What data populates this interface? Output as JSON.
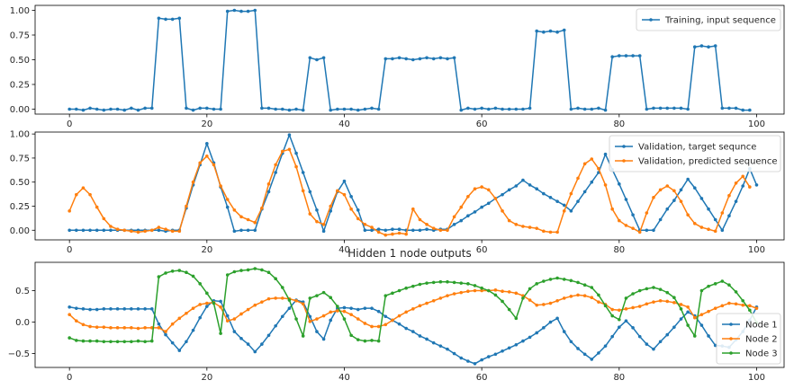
{
  "chart_data": [
    {
      "type": "line",
      "title": "",
      "xlim": [
        -5,
        104
      ],
      "ylim": [
        -0.05,
        1.05
      ],
      "xticks": [
        0,
        20,
        40,
        60,
        80,
        100
      ],
      "yticks": [
        0.0,
        0.25,
        0.5,
        0.75,
        1.0
      ],
      "xtick_labels": [
        "0",
        "20",
        "40",
        "60",
        "80",
        "100"
      ],
      "ytick_labels": [
        "0.00",
        "0.25",
        "0.50",
        "0.75",
        "1.00"
      ],
      "legend_position": "top-right",
      "series": [
        {
          "name": "Training, input sequence",
          "color": "#1f77b4",
          "values": [
            0,
            0,
            -0.01,
            0.01,
            0,
            -0.01,
            0,
            0,
            -0.01,
            0.01,
            -0.01,
            0.01,
            0.01,
            0.92,
            0.91,
            0.91,
            0.92,
            0.01,
            -0.01,
            0.01,
            0.01,
            0,
            0,
            0.99,
            1.0,
            0.99,
            0.99,
            1.0,
            0.01,
            0.01,
            0,
            0,
            -0.01,
            0,
            -0.01,
            0.52,
            0.5,
            0.52,
            -0.01,
            0,
            0,
            0,
            -0.01,
            0,
            0.01,
            0,
            0.51,
            0.51,
            0.52,
            0.51,
            0.5,
            0.51,
            0.52,
            0.51,
            0.52,
            0.51,
            0.52,
            -0.01,
            0.01,
            0,
            0.01,
            0,
            0.01,
            0,
            0,
            0,
            0,
            0.01,
            0.79,
            0.78,
            0.79,
            0.78,
            0.8,
            0,
            0.01,
            0,
            0,
            0.01,
            -0.01,
            0.53,
            0.54,
            0.54,
            0.54,
            0.54,
            0,
            0.01,
            0.01,
            0.01,
            0.01,
            0.01,
            0,
            0.63,
            0.64,
            0.63,
            0.64,
            0.01,
            0.01,
            0.01,
            -0.01,
            -0.01
          ]
        }
      ]
    },
    {
      "type": "line",
      "title": "",
      "xlim": [
        -5,
        104
      ],
      "ylim": [
        -0.1,
        1.02
      ],
      "xticks": [
        0,
        20,
        40,
        60,
        80,
        100
      ],
      "yticks": [
        0.0,
        0.25,
        0.5,
        0.75,
        1.0
      ],
      "xtick_labels": [
        "0",
        "20",
        "40",
        "60",
        "80",
        "100"
      ],
      "ytick_labels": [
        "0.00",
        "0.25",
        "0.50",
        "0.75",
        "1.00"
      ],
      "legend_position": "top-right",
      "series": [
        {
          "name": "Validation, target sequnce",
          "color": "#1f77b4",
          "values": [
            0,
            0,
            0,
            0,
            0,
            0,
            0,
            0,
            0,
            0,
            0,
            0,
            0,
            0,
            -0.01,
            0,
            0,
            0.23,
            0.47,
            0.68,
            0.9,
            0.7,
            0.45,
            0.24,
            -0.01,
            0,
            0,
            0,
            0.22,
            0.4,
            0.6,
            0.8,
            0.99,
            0.8,
            0.6,
            0.4,
            0.21,
            -0.01,
            0.2,
            0.4,
            0.51,
            0.35,
            0.21,
            0,
            0,
            0.01,
            0,
            0.01,
            0.01,
            0,
            0,
            0,
            0.01,
            0,
            0.01,
            0.01,
            0.06,
            0.1,
            0.15,
            0.19,
            0.24,
            0.28,
            0.33,
            0.37,
            0.42,
            0.46,
            0.52,
            0.47,
            0.43,
            0.38,
            0.34,
            0.3,
            0.26,
            0.2,
            0.3,
            0.4,
            0.5,
            0.6,
            0.79,
            0.63,
            0.48,
            0.32,
            0.16,
            0,
            0,
            0,
            0.11,
            0.22,
            0.31,
            0.42,
            0.53,
            0.44,
            0.33,
            0.22,
            0.11,
            0,
            0.15,
            0.3,
            0.46,
            0.64,
            0.47
          ]
        },
        {
          "name": "Validation, predicted sequence",
          "color": "#ff7f0e",
          "values": [
            0.2,
            0.37,
            0.44,
            0.37,
            0.24,
            0.12,
            0.04,
            0.01,
            0,
            -0.01,
            -0.02,
            -0.01,
            0,
            0.03,
            0.01,
            -0.01,
            -0.01,
            0.25,
            0.5,
            0.7,
            0.77,
            0.68,
            0.46,
            0.32,
            0.21,
            0.14,
            0.11,
            0.08,
            0.23,
            0.48,
            0.68,
            0.82,
            0.84,
            0.66,
            0.41,
            0.17,
            0.09,
            0.06,
            0.25,
            0.41,
            0.37,
            0.22,
            0.12,
            0.06,
            0.03,
            -0.02,
            -0.05,
            -0.04,
            -0.03,
            -0.04,
            0.22,
            0.11,
            0.06,
            0.02,
            0,
            0,
            0.14,
            0.24,
            0.35,
            0.43,
            0.45,
            0.42,
            0.33,
            0.2,
            0.1,
            0.06,
            0.04,
            0.03,
            0.02,
            -0.01,
            -0.02,
            -0.02,
            0.2,
            0.38,
            0.54,
            0.69,
            0.74,
            0.64,
            0.47,
            0.22,
            0.1,
            0.05,
            0.02,
            -0.02,
            0.18,
            0.34,
            0.42,
            0.46,
            0.41,
            0.3,
            0.16,
            0.07,
            0.03,
            0.01,
            -0.01,
            0.18,
            0.36,
            0.49,
            0.56,
            0.45
          ]
        }
      ]
    },
    {
      "type": "line",
      "title": "Hidden 1 node outputs",
      "xlim": [
        -5,
        104
      ],
      "ylim": [
        -0.72,
        0.95
      ],
      "xticks": [
        0,
        20,
        40,
        60,
        80,
        100
      ],
      "yticks": [
        -0.5,
        0.0,
        0.5
      ],
      "xtick_labels": [
        "0",
        "20",
        "40",
        "60",
        "80",
        "100"
      ],
      "ytick_labels": [
        "−0.5",
        "0.0",
        "0.5"
      ],
      "legend_position": "bottom-right",
      "series": [
        {
          "name": "Node 1",
          "color": "#1f77b4",
          "values": [
            0.24,
            0.22,
            0.21,
            0.2,
            0.2,
            0.21,
            0.21,
            0.21,
            0.21,
            0.21,
            0.21,
            0.21,
            0.21,
            -0.03,
            -0.2,
            -0.33,
            -0.45,
            -0.31,
            -0.13,
            0.07,
            0.25,
            0.34,
            0.33,
            0.1,
            -0.15,
            -0.26,
            -0.35,
            -0.47,
            -0.35,
            -0.21,
            -0.06,
            0.09,
            0.22,
            0.35,
            0.32,
            0.09,
            -0.15,
            -0.27,
            0.03,
            0.22,
            0.23,
            0.22,
            0.2,
            0.22,
            0.22,
            0.17,
            0.09,
            0.03,
            -0.03,
            -0.1,
            -0.15,
            -0.22,
            -0.27,
            -0.33,
            -0.38,
            -0.43,
            -0.5,
            -0.57,
            -0.62,
            -0.66,
            -0.6,
            -0.55,
            -0.51,
            -0.46,
            -0.41,
            -0.36,
            -0.3,
            -0.24,
            -0.17,
            -0.09,
            0.0,
            0.06,
            -0.15,
            -0.31,
            -0.42,
            -0.51,
            -0.59,
            -0.49,
            -0.38,
            -0.23,
            -0.08,
            0.02,
            -0.09,
            -0.23,
            -0.35,
            -0.43,
            -0.31,
            -0.2,
            -0.08,
            0.05,
            0.16,
            0.1,
            -0.05,
            -0.22,
            -0.37,
            -0.38,
            -0.4,
            -0.28,
            -0.15,
            0.03,
            0.24
          ]
        },
        {
          "name": "Node 2",
          "color": "#ff7f0e",
          "values": [
            0.12,
            0.02,
            -0.04,
            -0.07,
            -0.08,
            -0.08,
            -0.09,
            -0.09,
            -0.09,
            -0.09,
            -0.1,
            -0.09,
            -0.09,
            -0.09,
            -0.15,
            -0.03,
            0.06,
            0.14,
            0.22,
            0.28,
            0.3,
            0.31,
            0.24,
            0.02,
            0.05,
            0.13,
            0.2,
            0.27,
            0.32,
            0.37,
            0.38,
            0.38,
            0.37,
            0.34,
            0.29,
            0.01,
            0.05,
            0.1,
            0.16,
            0.18,
            0.17,
            0.12,
            0.05,
            -0.02,
            -0.07,
            -0.07,
            -0.04,
            0.03,
            0.1,
            0.16,
            0.21,
            0.26,
            0.3,
            0.34,
            0.38,
            0.42,
            0.45,
            0.47,
            0.49,
            0.5,
            0.5,
            0.5,
            0.51,
            0.49,
            0.48,
            0.46,
            0.42,
            0.35,
            0.27,
            0.28,
            0.3,
            0.34,
            0.38,
            0.41,
            0.43,
            0.42,
            0.39,
            0.32,
            0.28,
            0.2,
            0.19,
            0.21,
            0.23,
            0.25,
            0.29,
            0.32,
            0.34,
            0.33,
            0.31,
            0.28,
            0.24,
            0.07,
            0.12,
            0.17,
            0.22,
            0.26,
            0.3,
            0.29,
            0.27,
            0.26,
            0.22
          ]
        },
        {
          "name": "Node 3",
          "color": "#2ca02c",
          "values": [
            -0.25,
            -0.29,
            -0.3,
            -0.3,
            -0.3,
            -0.31,
            -0.31,
            -0.31,
            -0.31,
            -0.31,
            -0.3,
            -0.31,
            -0.3,
            0.72,
            0.78,
            0.81,
            0.82,
            0.79,
            0.73,
            0.61,
            0.46,
            0.3,
            -0.18,
            0.75,
            0.8,
            0.82,
            0.83,
            0.85,
            0.83,
            0.79,
            0.69,
            0.55,
            0.35,
            0.05,
            -0.22,
            0.38,
            0.42,
            0.47,
            0.39,
            0.25,
            0.05,
            -0.21,
            -0.28,
            -0.3,
            -0.29,
            -0.3,
            0.42,
            0.46,
            0.5,
            0.54,
            0.57,
            0.6,
            0.62,
            0.63,
            0.64,
            0.64,
            0.63,
            0.62,
            0.61,
            0.58,
            0.54,
            0.5,
            0.43,
            0.33,
            0.2,
            0.06,
            0.38,
            0.53,
            0.61,
            0.65,
            0.68,
            0.7,
            0.68,
            0.66,
            0.63,
            0.59,
            0.55,
            0.43,
            0.26,
            0.1,
            0.04,
            0.38,
            0.45,
            0.5,
            0.53,
            0.55,
            0.52,
            0.47,
            0.39,
            0.21,
            -0.05,
            -0.22,
            0.5,
            0.57,
            0.61,
            0.65,
            0.59,
            0.48,
            0.34,
            0.19,
            -0.01
          ]
        }
      ]
    }
  ]
}
